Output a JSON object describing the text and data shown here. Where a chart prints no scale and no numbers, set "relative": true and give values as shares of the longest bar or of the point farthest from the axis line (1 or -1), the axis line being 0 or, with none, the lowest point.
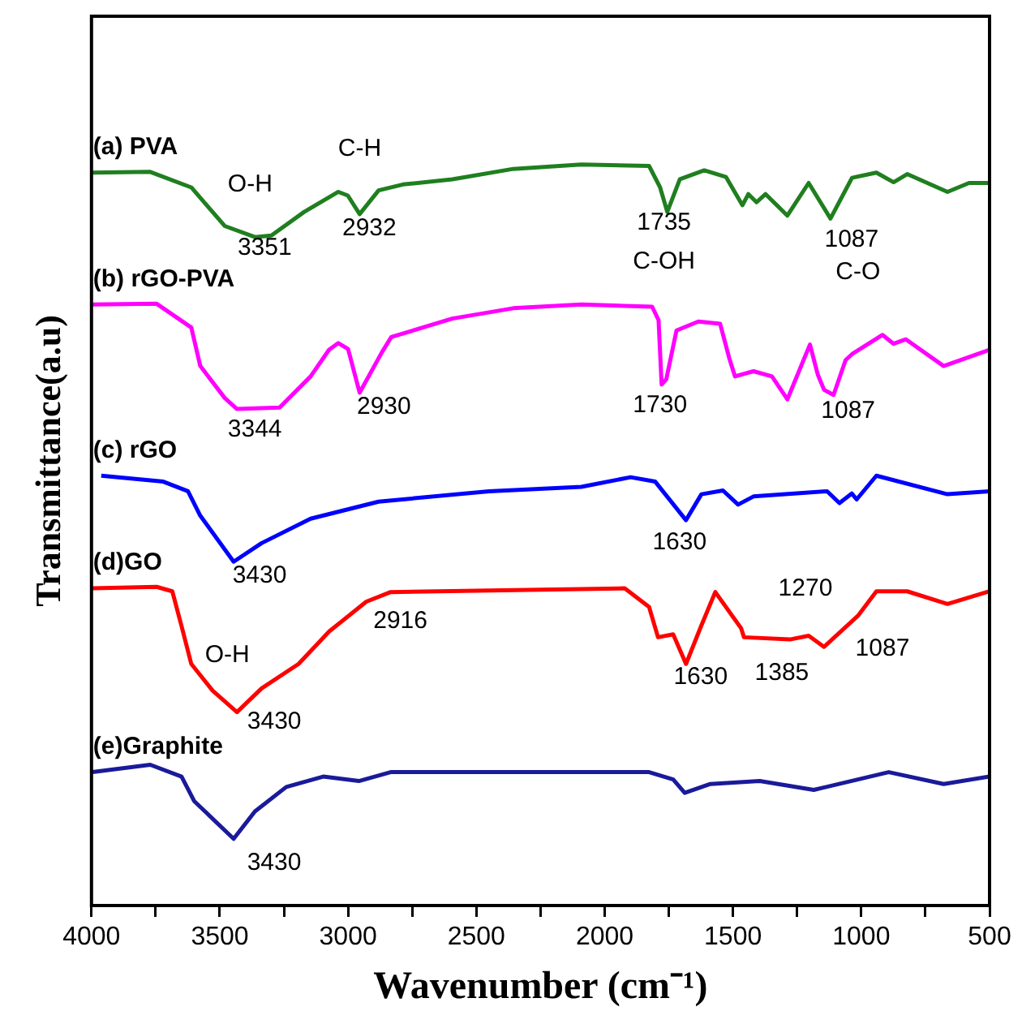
{
  "chart_data": {
    "type": "line",
    "relative": true,
    "xlabel": "Wavenumber (cm⁻¹)",
    "ylabel": "Transmittance(a.u)",
    "xlim": [
      4000,
      500
    ],
    "xticks": [
      4000,
      {
        "value": 3750,
        "label": null
      },
      3500,
      {
        "value": 3250,
        "label": null
      },
      3000,
      {
        "value": 2750,
        "label": null
      },
      2500,
      {
        "value": 2250,
        "label": null
      },
      2000,
      {
        "value": 1750,
        "label": null
      },
      1500,
      {
        "value": 1250,
        "label": null
      },
      1000,
      {
        "value": 750,
        "label": null
      },
      500
    ],
    "grid": false,
    "legend": false,
    "marker": "none",
    "line_style": "solid",
    "series": [
      {
        "name": "(a) PVA",
        "color": "#1f7f1f",
        "x": [
          3996,
          3771,
          3611,
          3481,
          3363,
          3299,
          3171,
          3038,
          3001,
          2955,
          2881,
          2786,
          2594,
          2356,
          2091,
          1827,
          1784,
          1756,
          1707,
          1612,
          1527,
          1463,
          1440,
          1408,
          1373,
          1288,
          1205,
          1120,
          1036,
          941,
          874,
          821,
          664,
          580,
          500
        ],
        "values": [
          0.989,
          0.99,
          0.969,
          0.917,
          0.902,
          0.904,
          0.936,
          0.963,
          0.958,
          0.933,
          0.965,
          0.973,
          0.98,
          0.994,
          1.0,
          0.998,
          0.969,
          0.936,
          0.98,
          0.992,
          0.983,
          0.945,
          0.96,
          0.949,
          0.96,
          0.931,
          0.975,
          0.927,
          0.982,
          0.989,
          0.976,
          0.987,
          0.963,
          0.975,
          0.975
        ]
      },
      {
        "name": "(b) rGO-PVA",
        "color": "#ff00ff",
        "x": [
          3996,
          3746,
          3611,
          3576,
          3481,
          3433,
          3267,
          3146,
          3074,
          3038,
          3000,
          2955,
          2869,
          2832,
          2594,
          2356,
          2091,
          1815,
          1790,
          1778,
          1760,
          1720,
          1635,
          1550,
          1514,
          1492,
          1420,
          1348,
          1288,
          1200,
          1169,
          1145,
          1108,
          1061,
          1036,
          917,
          874,
          826,
          679,
          500
        ],
        "values": [
          0.811,
          0.812,
          0.78,
          0.728,
          0.685,
          0.67,
          0.672,
          0.714,
          0.75,
          0.759,
          0.751,
          0.692,
          0.746,
          0.767,
          0.792,
          0.806,
          0.811,
          0.808,
          0.79,
          0.703,
          0.71,
          0.776,
          0.788,
          0.785,
          0.738,
          0.714,
          0.721,
          0.714,
          0.683,
          0.757,
          0.716,
          0.696,
          0.689,
          0.736,
          0.744,
          0.77,
          0.758,
          0.764,
          0.728,
          0.75
        ]
      },
      {
        "name": "(c) rGO",
        "color": "#0000ff",
        "x": [
          3962,
          3720,
          3624,
          3576,
          3446,
          3337,
          3146,
          2881,
          2451,
          2091,
          1899,
          1803,
          1683,
          1623,
          1539,
          1480,
          1420,
          1133,
          1085,
          1037,
          1018,
          941,
          664,
          500
        ],
        "values": [
          0.58,
          0.572,
          0.559,
          0.526,
          0.464,
          0.489,
          0.522,
          0.545,
          0.559,
          0.565,
          0.578,
          0.572,
          0.52,
          0.555,
          0.56,
          0.541,
          0.552,
          0.559,
          0.543,
          0.556,
          0.548,
          0.58,
          0.555,
          0.559
        ]
      },
      {
        "name": "(d)GO",
        "color": "#ff0000",
        "x": [
          3996,
          3746,
          3685,
          3649,
          3611,
          3528,
          3433,
          3337,
          3193,
          3073,
          2929,
          2834,
          2451,
          1922,
          1827,
          1792,
          1733,
          1683,
          1623,
          1569,
          1468,
          1457,
          1278,
          1205,
          1145,
          1013,
          941,
          821,
          664,
          500
        ],
        "values": [
          0.428,
          0.43,
          0.424,
          0.377,
          0.326,
          0.29,
          0.261,
          0.293,
          0.326,
          0.37,
          0.41,
          0.423,
          0.425,
          0.428,
          0.403,
          0.362,
          0.366,
          0.326,
          0.378,
          0.423,
          0.374,
          0.362,
          0.359,
          0.364,
          0.349,
          0.391,
          0.424,
          0.424,
          0.407,
          0.424
        ]
      },
      {
        "name": "(e)Graphite",
        "color": "#1a1a9a",
        "x": [
          3996,
          3771,
          3649,
          3600,
          3446,
          3363,
          3241,
          3097,
          2958,
          2834,
          2451,
          1827,
          1733,
          1688,
          1588,
          1396,
          1185,
          893,
          679,
          500
        ],
        "values": [
          0.18,
          0.19,
          0.174,
          0.141,
          0.09,
          0.127,
          0.16,
          0.174,
          0.168,
          0.18,
          0.18,
          0.18,
          0.17,
          0.152,
          0.164,
          0.168,
          0.156,
          0.18,
          0.164,
          0.174
        ]
      }
    ],
    "annotations": [
      {
        "text": "O-H",
        "x": 3363,
        "y": 0.902
      },
      {
        "text": "C-H",
        "x": 2955,
        "y": 0.933
      },
      {
        "text": "3351",
        "x": 3363,
        "y": 0.902
      },
      {
        "text": "2932",
        "x": 2955,
        "y": 0.933
      },
      {
        "text": "1735",
        "x": 1756,
        "y": 0.936
      },
      {
        "text": "C-OH",
        "x": 1756,
        "y": 0.936
      },
      {
        "text": "1087",
        "x": 1120,
        "y": 0.927
      },
      {
        "text": "C-O",
        "x": 1120,
        "y": 0.927
      },
      {
        "text": "3344",
        "x": 3433,
        "y": 0.67
      },
      {
        "text": "2930",
        "x": 2955,
        "y": 0.692
      },
      {
        "text": "1730",
        "x": 1778,
        "y": 0.703
      },
      {
        "text": "1087",
        "x": 1108,
        "y": 0.689
      },
      {
        "text": "3430",
        "x": 3446,
        "y": 0.464
      },
      {
        "text": "1630",
        "x": 1683,
        "y": 0.52
      },
      {
        "text": "2916",
        "x": 2929,
        "y": 0.41
      },
      {
        "text": "1270",
        "x": 1205,
        "y": 0.364
      },
      {
        "text": "O-H",
        "x": 3433,
        "y": 0.261
      },
      {
        "text": "3430",
        "x": 3433,
        "y": 0.261
      },
      {
        "text": "1630",
        "x": 1683,
        "y": 0.326
      },
      {
        "text": "1385",
        "x": 1278,
        "y": 0.359
      },
      {
        "text": "1087",
        "x": 1145,
        "y": 0.349
      },
      {
        "text": "3430",
        "x": 3446,
        "y": 0.09
      }
    ]
  }
}
